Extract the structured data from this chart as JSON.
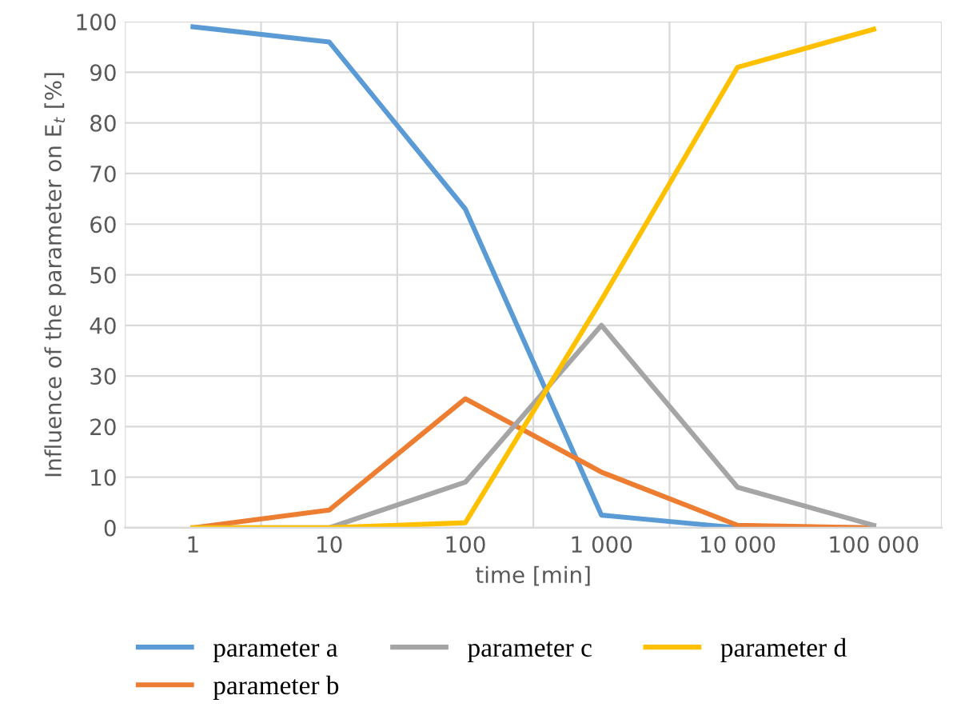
{
  "chart_data": {
    "type": "line",
    "xlabel": "time [min]",
    "ylabel": "Influence of the parameter on E$_{t}$ [%]",
    "categories": [
      "1",
      "10",
      "100",
      "1 000",
      "10 000",
      "100 000"
    ],
    "series": [
      {
        "name": "parameter a",
        "color": "#5b9bd5",
        "values": [
          99,
          96,
          63,
          2.5,
          0,
          0
        ]
      },
      {
        "name": "parameter b",
        "color": "#ed7d31",
        "values": [
          0,
          3.5,
          25.5,
          11,
          0.5,
          0
        ]
      },
      {
        "name": "parameter c",
        "color": "#a5a5a5",
        "values": [
          0,
          0,
          9,
          40,
          8,
          0.5
        ]
      },
      {
        "name": "parameter d",
        "color": "#ffc000",
        "values": [
          0,
          0,
          1,
          45,
          91,
          98.5
        ]
      }
    ],
    "ylim": [
      0,
      100
    ],
    "yticks": [
      0,
      10,
      20,
      30,
      40,
      50,
      60,
      70,
      80,
      90,
      100
    ],
    "grid": true,
    "legend": "bottom",
    "marker": "none",
    "line_style": "solid"
  }
}
